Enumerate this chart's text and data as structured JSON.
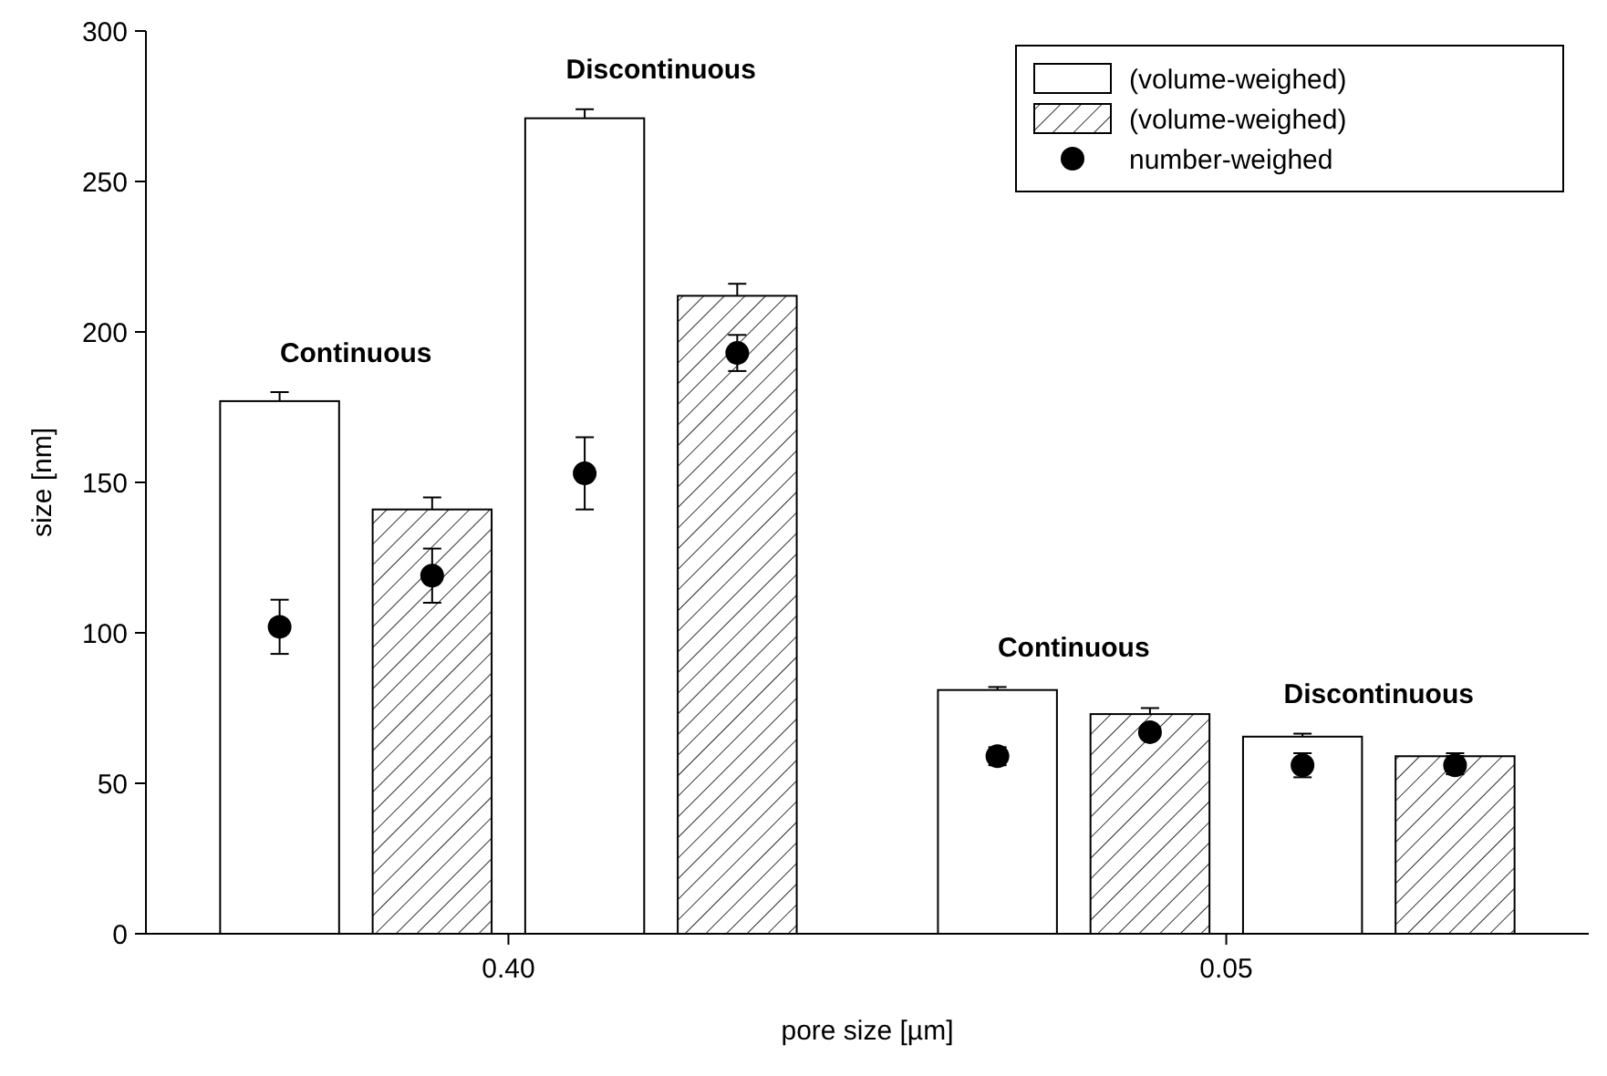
{
  "chart_data": {
    "type": "bar",
    "xlabel": "pore size [µm]",
    "ylabel": "size [nm]",
    "categories": [
      "0.40",
      "0.05"
    ],
    "ylim": [
      0,
      300
    ],
    "yticks": [
      0,
      50,
      100,
      150,
      200,
      250,
      300
    ],
    "legend": "top right",
    "grid": false,
    "series": [
      {
        "name": "(volume-weighed)",
        "color": "#ffffff",
        "values": [
          177,
          81
        ],
        "errors": [
          3,
          1
        ]
      },
      {
        "name": "(volume-weighed)",
        "color": "#000000",
        "values": [
          141,
          73
        ],
        "errors": [
          4,
          2
        ]
      },
      {
        "color": "#ffffff",
        "values": [
          271,
          65.5
        ],
        "errors": [
          3,
          1
        ]
      },
      {
        "color": "#000000",
        "values": [
          212,
          59
        ],
        "errors": [
          4,
          1
        ]
      },
      {
        "type": "scatter",
        "name": "number-weighed",
        "color": "#000000",
        "x": [
          "0.40",
          "0.05"
        ],
        "values": [
          102,
          59
        ],
        "errors": [
          9,
          3
        ]
      },
      {
        "type": "scatter",
        "color": "#000000",
        "x": [
          "0.40",
          "0.05"
        ],
        "values": [
          119,
          67
        ],
        "errors": [
          9,
          2
        ]
      },
      {
        "type": "scatter",
        "color": "#000000",
        "x": [
          "0.40",
          "0.05"
        ],
        "values": [
          153,
          56
        ],
        "errors": [
          12,
          4
        ]
      },
      {
        "type": "scatter",
        "color": "#000000",
        "x": [
          "0.40",
          "0.05"
        ],
        "values": [
          193,
          56
        ],
        "errors": [
          6,
          3
        ]
      }
    ],
    "marker": "circle",
    "annotations": [
      "Continuous",
      "Discontinuous",
      "Continuous",
      "Discontinuous"
    ]
  }
}
